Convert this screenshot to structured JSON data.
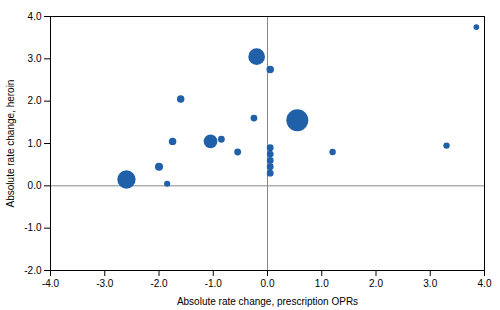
{
  "chart_data": {
    "type": "scatter",
    "xlabel": "Absolute rate change, prescription OPRs",
    "ylabel": "Absolute rate change, heroin",
    "color": "#2060a8",
    "x": [
      -2.6,
      -2.0,
      -1.85,
      -1.75,
      -1.6,
      -1.05,
      -0.85,
      -0.55,
      -0.25,
      -0.2,
      0.05,
      0.05,
      0.05,
      0.05,
      0.05,
      0.05,
      0.55,
      1.2,
      3.3,
      3.85
    ],
    "values": [
      0.15,
      0.45,
      0.05,
      1.05,
      2.05,
      1.05,
      1.1,
      0.8,
      1.6,
      3.05,
      2.75,
      0.9,
      0.75,
      0.6,
      0.45,
      0.3,
      1.55,
      0.8,
      0.95,
      3.75
    ],
    "sizes": [
      180,
      35,
      20,
      30,
      30,
      100,
      25,
      25,
      25,
      150,
      30,
      25,
      25,
      25,
      25,
      25,
      260,
      22,
      22,
      18
    ],
    "hline_y": 0.0,
    "vline_x": 0.0,
    "xlim": [
      -4.0,
      4.0
    ],
    "ylim": [
      -2.0,
      4.0
    ],
    "xticks": [
      {
        "value": -4.0,
        "label": "-4.0"
      },
      {
        "value": -3.0,
        "label": "-3.0"
      },
      {
        "value": -2.0,
        "label": "-2.0"
      },
      {
        "value": -1.0,
        "label": "-1.0"
      },
      {
        "value": 0.0,
        "label": "0.0"
      },
      {
        "value": 1.0,
        "label": "1.0"
      },
      {
        "value": 2.0,
        "label": "2.0"
      },
      {
        "value": 3.0,
        "label": "3.0"
      },
      {
        "value": 4.0,
        "label": "4.0"
      }
    ],
    "yticks": [
      {
        "value": -2.0,
        "label": "-2.0"
      },
      {
        "value": -1.0,
        "label": "-1.0"
      },
      {
        "value": 0.0,
        "label": "0.0"
      },
      {
        "value": 1.0,
        "label": "1.0"
      },
      {
        "value": 2.0,
        "label": "2.0"
      },
      {
        "value": 3.0,
        "label": "3.0"
      },
      {
        "value": 4.0,
        "label": "4.0"
      }
    ],
    "grid": false
  }
}
